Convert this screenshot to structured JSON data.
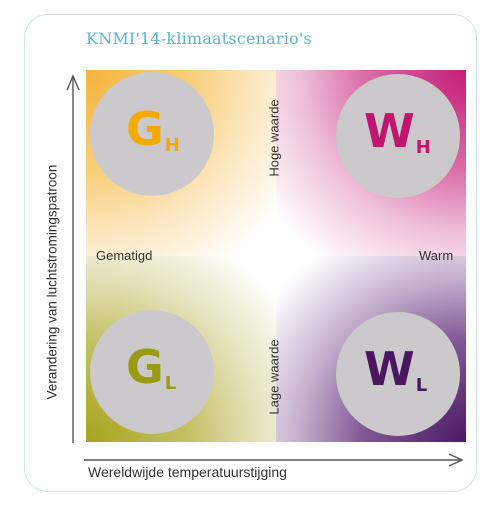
{
  "diagram": {
    "title": "KNMI'14-klimaatscenario's",
    "x_axis_label": "Wereldwijde temperatuurstijging",
    "y_axis_label": "Verandering van luchtstromingspatroon",
    "left_label": "Gematigd",
    "right_label": "Warm",
    "top_label": "Hoge waarde",
    "bottom_label": "Lage waarde",
    "scenarios": {
      "gh": {
        "letter": "G",
        "sub": "H",
        "color": "#f2a900"
      },
      "wh": {
        "letter": "W",
        "sub": "H",
        "color": "#c0166f"
      },
      "gl": {
        "letter": "G",
        "sub": "L",
        "color": "#9a9a14"
      },
      "wl": {
        "letter": "W",
        "sub": "L",
        "color": "#4a1660"
      }
    }
  }
}
